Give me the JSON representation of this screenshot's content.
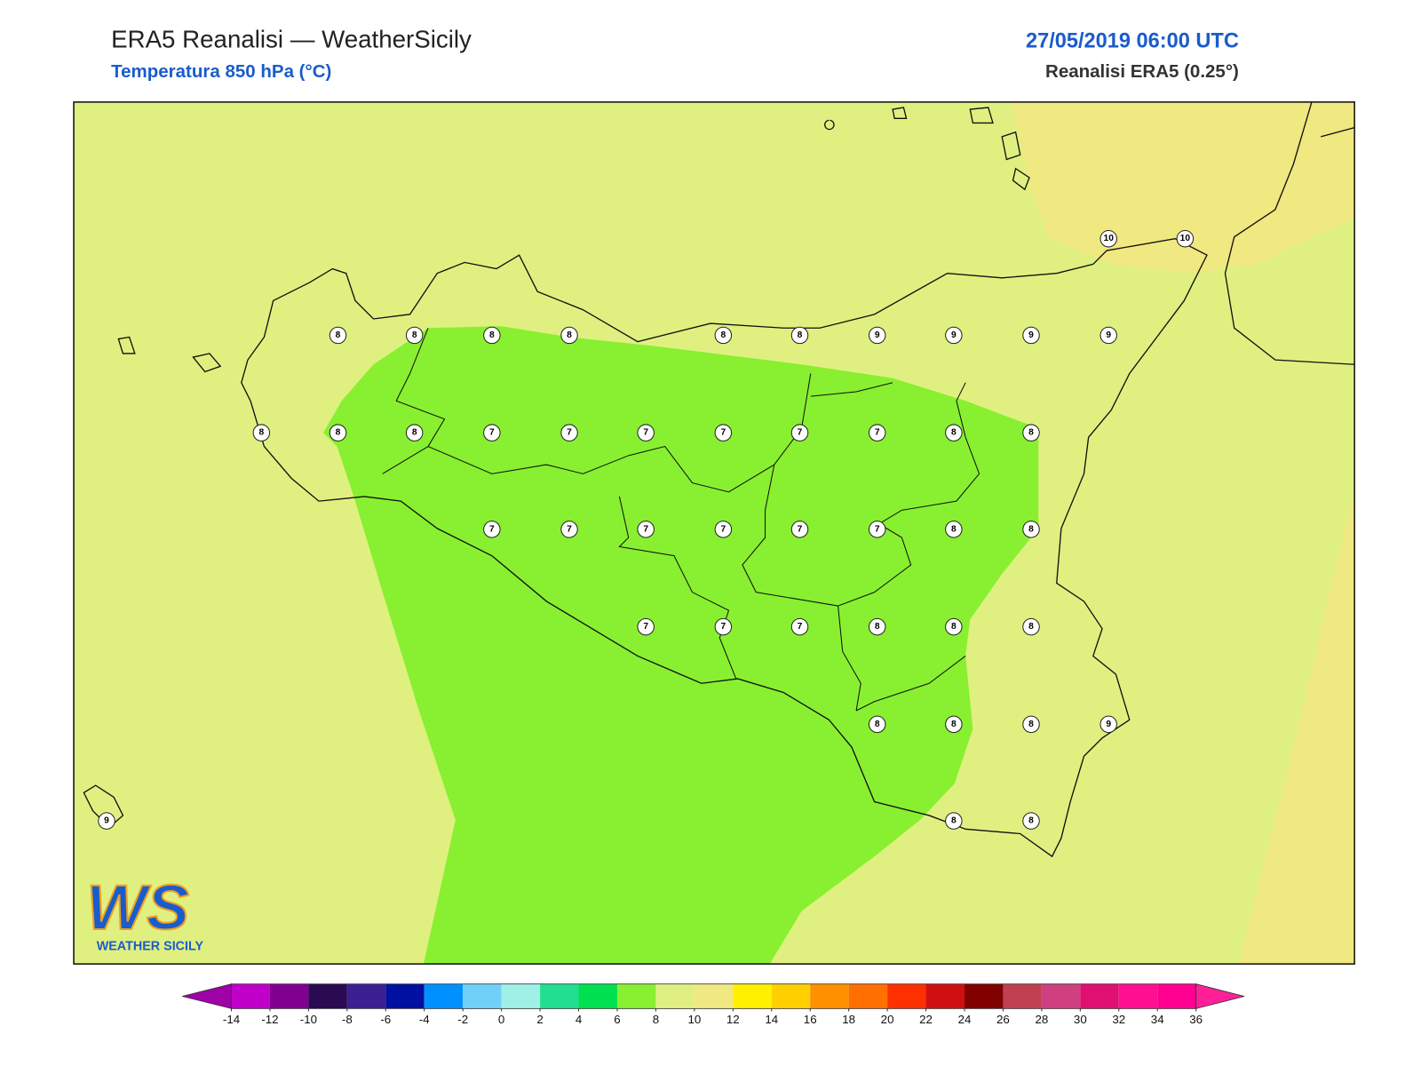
{
  "header": {
    "title": "ERA5 Reanalisi — WeatherSicily",
    "subtitle": "Temperatura 850 hPa (°C)",
    "datetime": "27/05/2019 06:00 UTC",
    "source": "Reanalisi ERA5 (0.25°)"
  },
  "stations": [
    10,
    10,
    8,
    8,
    8,
    8,
    8,
    8,
    9,
    9,
    9,
    9,
    8,
    8,
    8,
    7,
    7,
    7,
    7,
    7,
    7,
    8,
    8,
    7,
    7,
    7,
    7,
    7,
    7,
    8,
    8,
    7,
    7,
    7,
    8,
    8,
    8,
    8,
    8,
    8,
    9,
    9,
    8,
    8
  ],
  "colorbar": {
    "ticks": [
      -14,
      -12,
      -10,
      -8,
      -6,
      -4,
      -2,
      0,
      2,
      4,
      6,
      8,
      10,
      12,
      14,
      16,
      18,
      20,
      22,
      24,
      26,
      28,
      30,
      32,
      34,
      36
    ],
    "under_color": "#a000a8",
    "over_color": "#ff2098",
    "colors": [
      "#c000c8",
      "#800090",
      "#2a0a50",
      "#3a2090",
      "#0010a0",
      "#0090ff",
      "#70d0f8",
      "#a0f0e8",
      "#20e090",
      "#00e050",
      "#88f030",
      "#e0f080",
      "#f0e880",
      "#fff000",
      "#ffd000",
      "#ff9000",
      "#ff7000",
      "#ff3000",
      "#d01010",
      "#800000",
      "#c04050",
      "#d04080",
      "#e01070",
      "#ff1090",
      "#ff0090"
    ]
  },
  "logo": {
    "mark": "WS",
    "name": "WEATHER SICILY"
  }
}
